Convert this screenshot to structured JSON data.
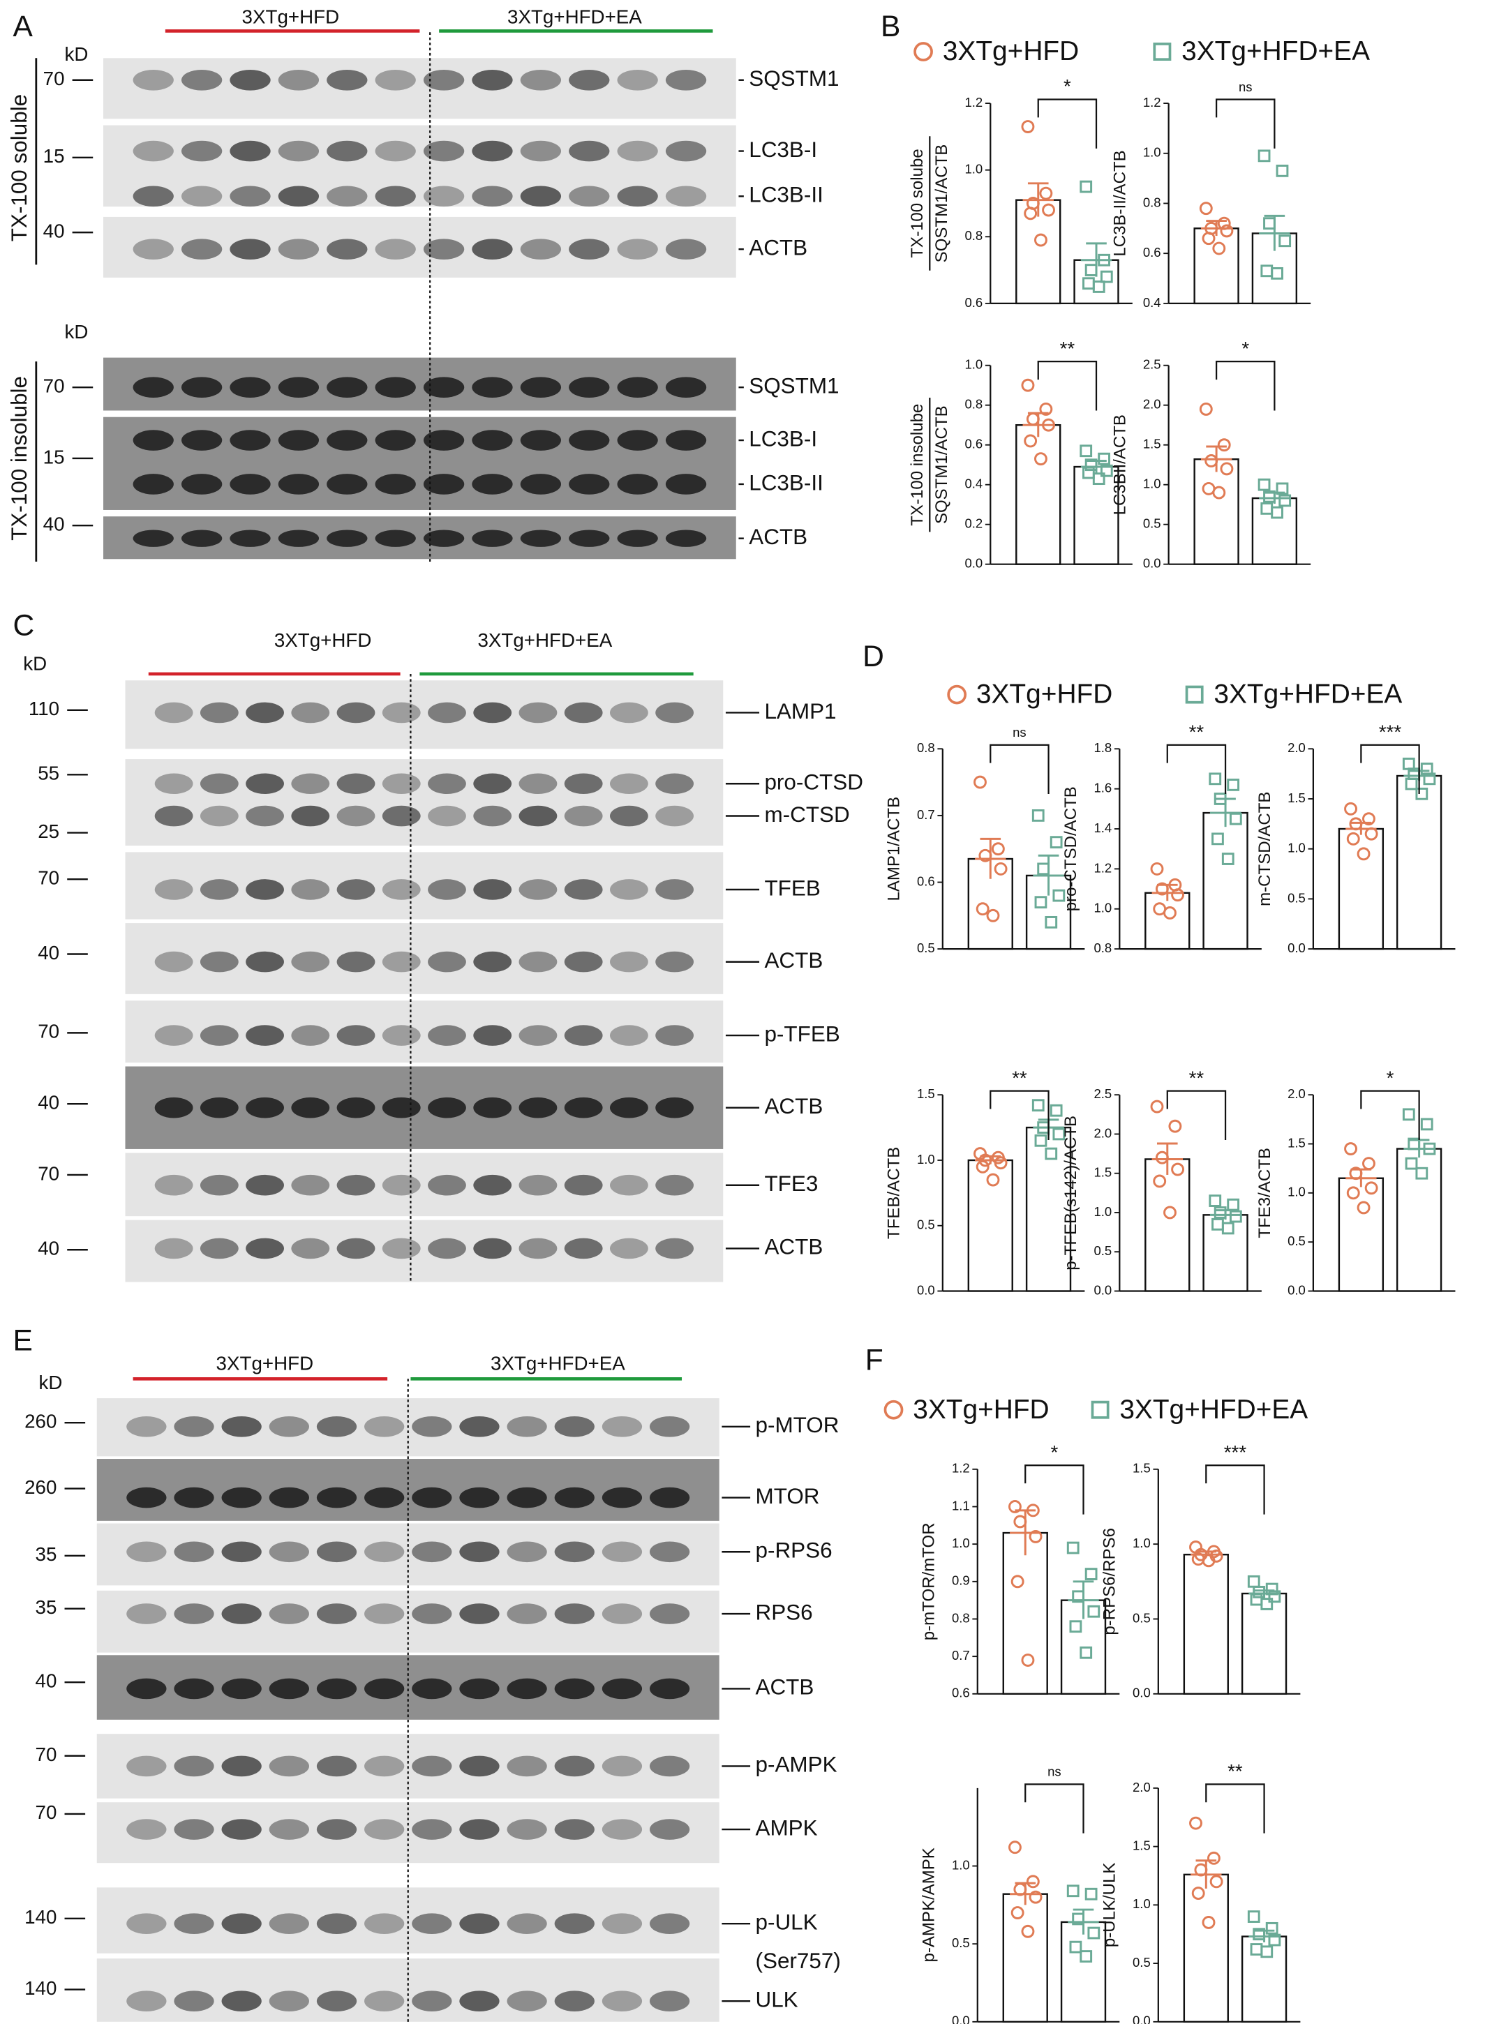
{
  "blots": [
    {
      "panel": "A",
      "unit": "kD",
      "groups": [
        "3XTg+HFD",
        "3XTg+HFD+EA"
      ],
      "sections": [
        {
          "label": "TX-100 soluble",
          "strips": [
            {
              "markers": [
                70
              ],
              "proteins": [
                "SQSTM1"
              ]
            },
            {
              "markers": [
                15
              ],
              "proteins": [
                "LC3B-I",
                "LC3B-II"
              ]
            },
            {
              "markers": [
                40
              ],
              "proteins": [
                "ACTB"
              ]
            }
          ]
        },
        {
          "label": "TX-100 insoluble",
          "strips": [
            {
              "markers": [
                70
              ],
              "proteins": [
                "SQSTM1"
              ]
            },
            {
              "markers": [
                15
              ],
              "proteins": [
                "LC3B-I",
                "LC3B-II"
              ]
            },
            {
              "markers": [
                40
              ],
              "proteins": [
                "ACTB"
              ]
            }
          ]
        }
      ]
    },
    {
      "panel": "C",
      "unit": "kD",
      "groups": [
        "3XTg+HFD",
        "3XTg+HFD+EA"
      ],
      "sections": [
        {
          "strips": [
            {
              "markers": [
                110
              ],
              "proteins": [
                "LAMP1"
              ]
            },
            {
              "markers": [
                55,
                25
              ],
              "proteins": [
                "pro-CTSD",
                "m-CTSD"
              ]
            },
            {
              "markers": [
                70
              ],
              "proteins": [
                "TFEB"
              ]
            },
            {
              "markers": [
                40
              ],
              "proteins": [
                "ACTB"
              ]
            },
            {
              "markers": [
                70
              ],
              "proteins": [
                "p-TFEB"
              ]
            },
            {
              "markers": [
                40
              ],
              "proteins": [
                "ACTB"
              ]
            },
            {
              "markers": [
                70
              ],
              "proteins": [
                "TFE3"
              ]
            },
            {
              "markers": [
                40
              ],
              "proteins": [
                "ACTB"
              ]
            }
          ]
        }
      ]
    },
    {
      "panel": "E",
      "unit": "kD",
      "groups": [
        "3XTg+HFD",
        "3XTg+HFD+EA"
      ],
      "sections": [
        {
          "strips": [
            {
              "markers": [
                260
              ],
              "proteins": [
                "p-MTOR"
              ]
            },
            {
              "markers": [
                260
              ],
              "proteins": [
                "MTOR"
              ]
            },
            {
              "markers": [
                35
              ],
              "proteins": [
                "p-RPS6"
              ]
            },
            {
              "markers": [
                35
              ],
              "proteins": [
                "RPS6"
              ]
            },
            {
              "markers": [
                40
              ],
              "proteins": [
                "ACTB"
              ]
            },
            {
              "markers": [
                70
              ],
              "proteins": [
                "p-AMPK"
              ]
            },
            {
              "markers": [
                70
              ],
              "proteins": [
                "AMPK"
              ]
            },
            {
              "markers": [
                140
              ],
              "proteins": [
                "p-ULK",
                "(Ser757)"
              ]
            },
            {
              "markers": [
                140
              ],
              "proteins": [
                "ULK"
              ]
            }
          ]
        }
      ]
    }
  ],
  "chart_data": [
    {
      "type": "bar",
      "panel": "B",
      "legend": [
        "3XTg+HFD",
        "3XTg+HFD+EA"
      ],
      "colors": [
        "#e07b54",
        "#6aaa96"
      ],
      "charts": [
        {
          "row_label": "TX-100 solube",
          "ylabel": "SQSTM1/ACTB",
          "ylim": [
            0.6,
            1.2
          ],
          "yticks": [
            0.6,
            0.8,
            {
              "value": 1,
              "label": "1.0"
            },
            1.2
          ],
          "significance": "*",
          "groups": [
            {
              "mean": 0.91,
              "sem": 0.05,
              "points": [
                1.13,
                0.93,
                0.9,
                0.88,
                0.87,
                0.79
              ]
            },
            {
              "mean": 0.73,
              "sem": 0.05,
              "points": [
                0.95,
                0.73,
                0.7,
                0.68,
                0.66,
                0.65
              ]
            }
          ]
        },
        {
          "ylabel": "LC3B-II/ACTB",
          "ylim": [
            0.4,
            1.2
          ],
          "yticks": [
            0.4,
            0.6,
            0.8,
            {
              "value": 1,
              "label": "1.0"
            },
            1.2
          ],
          "significance": "ns",
          "groups": [
            {
              "mean": 0.7,
              "sem": 0.03,
              "points": [
                0.78,
                0.72,
                0.7,
                0.69,
                0.66,
                0.62
              ]
            },
            {
              "mean": 0.68,
              "sem": 0.07,
              "points": [
                0.99,
                0.93,
                0.72,
                0.65,
                0.53,
                0.52
              ]
            }
          ]
        },
        {
          "row_label": "TX-100 insolube",
          "ylabel": "SQSTM1/ACTB",
          "ylim": [
            0,
            1
          ],
          "yticks": [
            {
              "value": 0,
              "label": "0.0"
            },
            0.2,
            0.4,
            0.6,
            0.8,
            {
              "value": 1,
              "label": "1.0"
            }
          ],
          "significance": "**",
          "groups": [
            {
              "mean": 0.7,
              "sem": 0.06,
              "points": [
                0.9,
                0.78,
                0.73,
                0.7,
                0.62,
                0.53
              ]
            },
            {
              "mean": 0.49,
              "sem": 0.03,
              "points": [
                0.57,
                0.53,
                0.5,
                0.47,
                0.46,
                0.43
              ]
            }
          ]
        },
        {
          "ylabel": "LC3BII/ACTB",
          "ylim": [
            0,
            2.5
          ],
          "yticks": [
            {
              "value": 0,
              "label": "0.0"
            },
            0.5,
            {
              "value": 1,
              "label": "1.0"
            },
            1.5,
            {
              "value": 2,
              "label": "2.0"
            },
            2.5
          ],
          "significance": "*",
          "groups": [
            {
              "mean": 1.32,
              "sem": 0.16,
              "points": [
                1.95,
                1.5,
                1.3,
                1.2,
                0.95,
                0.9
              ]
            },
            {
              "mean": 0.83,
              "sem": 0.07,
              "points": [
                1,
                0.95,
                0.85,
                0.8,
                0.7,
                0.65
              ]
            }
          ]
        }
      ]
    },
    {
      "type": "bar",
      "panel": "D",
      "legend": [
        "3XTg+HFD",
        "3XTg+HFD+EA"
      ],
      "colors": [
        "#e07b54",
        "#6aaa96"
      ],
      "charts": [
        {
          "ylabel": "LAMP1/ACTB",
          "ylim": [
            0.5,
            0.8
          ],
          "yticks": [
            0.5,
            0.6,
            0.7,
            0.8
          ],
          "significance": "ns",
          "groups": [
            {
              "mean": 0.635,
              "sem": 0.03,
              "points": [
                0.75,
                0.65,
                0.64,
                0.62,
                0.56,
                0.55
              ]
            },
            {
              "mean": 0.61,
              "sem": 0.03,
              "points": [
                0.7,
                0.66,
                0.62,
                0.58,
                0.57,
                0.54
              ]
            }
          ]
        },
        {
          "ylabel": "pro-CTSD/ACTB",
          "ylim": [
            0.8,
            1.8
          ],
          "yticks": [
            0.8,
            {
              "value": 1,
              "label": "1.0"
            },
            1.2,
            1.4,
            1.6,
            1.8
          ],
          "significance": "**",
          "groups": [
            {
              "mean": 1.08,
              "sem": 0.04,
              "points": [
                1.2,
                1.12,
                1.1,
                1.07,
                1,
                0.98
              ]
            },
            {
              "mean": 1.48,
              "sem": 0.07,
              "points": [
                1.65,
                1.62,
                1.55,
                1.45,
                1.35,
                1.25
              ]
            }
          ]
        },
        {
          "ylabel": "m-CTSD/ACTB",
          "ylim": [
            0,
            2
          ],
          "yticks": [
            {
              "value": 0,
              "label": "0.0"
            },
            0.5,
            {
              "value": 1,
              "label": "1.0"
            },
            1.5,
            {
              "value": 2,
              "label": "2.0"
            }
          ],
          "significance": "***",
          "groups": [
            {
              "mean": 1.2,
              "sem": 0.06,
              "points": [
                1.4,
                1.3,
                1.25,
                1.15,
                1.1,
                0.95
              ]
            },
            {
              "mean": 1.73,
              "sem": 0.05,
              "points": [
                1.85,
                1.8,
                1.75,
                1.7,
                1.65,
                1.55
              ]
            }
          ]
        },
        {
          "ylabel": "TFEB/ACTB",
          "ylim": [
            0,
            1.5
          ],
          "yticks": [
            {
              "value": 0,
              "label": "0.0"
            },
            0.5,
            {
              "value": 1,
              "label": "1.0"
            },
            1.5
          ],
          "significance": "**",
          "groups": [
            {
              "mean": 1,
              "sem": 0.03,
              "points": [
                1.05,
                1.02,
                1,
                0.98,
                0.95,
                0.85
              ]
            },
            {
              "mean": 1.25,
              "sem": 0.06,
              "points": [
                1.42,
                1.38,
                1.25,
                1.2,
                1.15,
                1.05
              ]
            }
          ]
        },
        {
          "ylabel": "p-TFEB(s142)/ACTB",
          "ylim": [
            0,
            2.5
          ],
          "yticks": [
            {
              "value": 0,
              "label": "0.0"
            },
            0.5,
            {
              "value": 1,
              "label": "1.0"
            },
            1.5,
            {
              "value": 2,
              "label": "2.0"
            },
            2.5
          ],
          "significance": "**",
          "groups": [
            {
              "mean": 1.68,
              "sem": 0.2,
              "points": [
                2.35,
                2.1,
                1.7,
                1.55,
                1.4,
                1
              ]
            },
            {
              "mean": 0.97,
              "sem": 0.06,
              "points": [
                1.15,
                1.1,
                1,
                0.95,
                0.85,
                0.8
              ]
            }
          ]
        },
        {
          "ylabel": "TFE3/ACTB",
          "ylim": [
            0,
            2
          ],
          "yticks": [
            {
              "value": 0,
              "label": "0.0"
            },
            0.5,
            {
              "value": 1,
              "label": "1.0"
            },
            1.5,
            {
              "value": 2,
              "label": "2.0"
            }
          ],
          "significance": "*",
          "groups": [
            {
              "mean": 1.15,
              "sem": 0.09,
              "points": [
                1.45,
                1.3,
                1.2,
                1.05,
                1,
                0.85
              ]
            },
            {
              "mean": 1.45,
              "sem": 0.09,
              "points": [
                1.8,
                1.7,
                1.5,
                1.45,
                1.3,
                1.2
              ]
            }
          ]
        }
      ]
    },
    {
      "type": "bar",
      "panel": "F",
      "legend": [
        "3XTg+HFD",
        "3XTg+HFD+EA"
      ],
      "colors": [
        "#e07b54",
        "#6aaa96"
      ],
      "charts": [
        {
          "ylabel": "p-mTOR/mTOR",
          "ylim": [
            0.6,
            1.2
          ],
          "yticks": [
            0.6,
            0.7,
            0.8,
            0.9,
            {
              "value": 1,
              "label": "1.0"
            },
            1.1,
            1.2
          ],
          "significance": "*",
          "groups": [
            {
              "mean": 1.03,
              "sem": 0.06,
              "points": [
                1.1,
                1.09,
                1.06,
                1.02,
                0.9,
                0.69
              ]
            },
            {
              "mean": 0.85,
              "sem": 0.05,
              "points": [
                0.99,
                0.92,
                0.86,
                0.82,
                0.78,
                0.71
              ]
            }
          ]
        },
        {
          "ylabel": "p-RPS6/RPS6",
          "ylim": [
            0,
            1.5
          ],
          "yticks": [
            {
              "value": 0,
              "label": "0.0"
            },
            0.5,
            {
              "value": 1,
              "label": "1.0"
            },
            1.5
          ],
          "significance": "***",
          "groups": [
            {
              "mean": 0.93,
              "sem": 0.02,
              "points": [
                0.98,
                0.95,
                0.93,
                0.92,
                0.9,
                0.89
              ]
            },
            {
              "mean": 0.67,
              "sem": 0.02,
              "points": [
                0.75,
                0.7,
                0.68,
                0.65,
                0.63,
                0.6
              ]
            }
          ]
        },
        {
          "ylabel": "p-AMPK/AMPK",
          "ylim": [
            0,
            1.5
          ],
          "yticks": [
            {
              "value": 0,
              "label": "0.0"
            },
            0.5,
            {
              "value": 1,
              "label": "1.0"
            }
          ],
          "significance": "ns",
          "groups": [
            {
              "mean": 0.82,
              "sem": 0.07,
              "points": [
                1.12,
                0.9,
                0.85,
                0.8,
                0.7,
                0.58
              ]
            },
            {
              "mean": 0.64,
              "sem": 0.08,
              "points": [
                0.84,
                0.82,
                0.66,
                0.57,
                0.48,
                0.42
              ]
            }
          ]
        },
        {
          "ylabel": "p-ULK/ULK",
          "ylim": [
            0,
            2
          ],
          "yticks": [
            {
              "value": 0,
              "label": "0.0"
            },
            0.5,
            {
              "value": 1,
              "label": "1.0"
            },
            1.5,
            {
              "value": 2,
              "label": "2.0"
            }
          ],
          "significance": "**",
          "groups": [
            {
              "mean": 1.26,
              "sem": 0.12,
              "points": [
                1.7,
                1.4,
                1.3,
                1.2,
                1.1,
                0.85
              ]
            },
            {
              "mean": 0.73,
              "sem": 0.05,
              "points": [
                0.9,
                0.8,
                0.75,
                0.7,
                0.62,
                0.6
              ]
            }
          ]
        }
      ]
    }
  ]
}
